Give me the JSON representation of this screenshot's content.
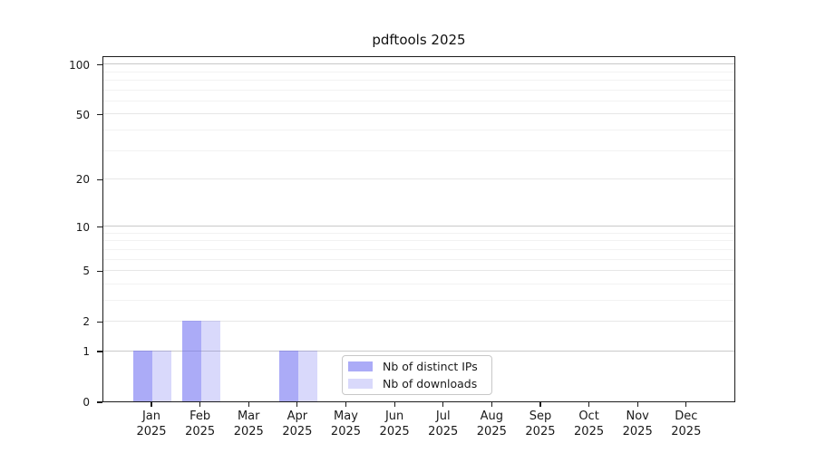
{
  "chart_data": {
    "type": "bar",
    "title": "pdftools 2025",
    "months": [
      "Jan",
      "Feb",
      "Mar",
      "Apr",
      "May",
      "Jun",
      "Jul",
      "Aug",
      "Sep",
      "Oct",
      "Nov",
      "Dec"
    ],
    "year": "2025",
    "categories": [
      "Jan 2025",
      "Feb 2025",
      "Mar 2025",
      "Apr 2025",
      "May 2025",
      "Jun 2025",
      "Jul 2025",
      "Aug 2025",
      "Sep 2025",
      "Oct 2025",
      "Nov 2025",
      "Dec 2025"
    ],
    "series": [
      {
        "name": "Nb of distinct IPs",
        "color": "rgba(102,102,240,0.55)",
        "values": [
          1,
          2,
          0,
          1,
          0,
          0,
          0,
          0,
          0,
          0,
          0,
          0
        ]
      },
      {
        "name": "Nb of downloads",
        "color": "rgba(102,102,240,0.25)",
        "values": [
          1,
          2,
          0,
          1,
          0,
          0,
          0,
          0,
          0,
          0,
          0,
          0
        ]
      }
    ],
    "y_axis": {
      "scale": "log1p",
      "ticks": [
        0,
        1,
        2,
        5,
        10,
        20,
        50,
        100
      ],
      "decade_ticks": [
        1,
        10,
        100
      ],
      "minor_gridlines": [
        3,
        4,
        6,
        7,
        8,
        9,
        30,
        40,
        60,
        70,
        80,
        90
      ],
      "max": 113
    },
    "xlabel": "",
    "ylabel": "",
    "legend": {
      "position": "lower center",
      "border_color": "#c8c8c8"
    },
    "colors": {
      "bar_distinct_ips": "#aaaaf7",
      "bar_downloads": "#d9d9fb",
      "grid_major": "#c9c9c9",
      "grid_mid": "#e7e7e7",
      "grid_minor": "#f2f2f2",
      "spine": "#1c1c1c",
      "background": "#ffffff"
    }
  }
}
